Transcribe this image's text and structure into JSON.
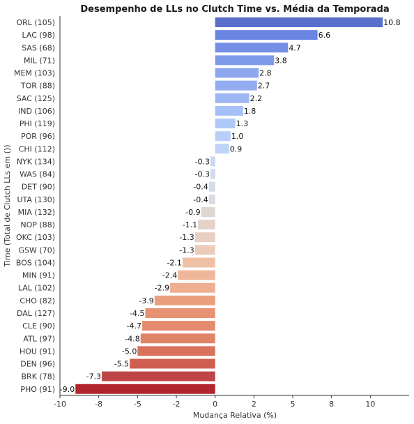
{
  "chart_data": {
    "type": "bar",
    "orientation": "horizontal",
    "title": "Desempenho de LLs no Clutch Time vs. Média da Temporada",
    "xlabel": "Mudança Relativa (%)",
    "ylabel": "Time (Total de Clutch LLs em ())",
    "xlim": [
      -10,
      12.5
    ],
    "xticks": [
      -10,
      -8,
      -5,
      -2,
      0,
      2,
      5,
      8,
      10
    ],
    "xtick_values": [
      -10,
      -7.5,
      -5,
      -2.5,
      0,
      2.5,
      5,
      7.5,
      10
    ],
    "grid": false,
    "categories": [
      "ORL (105)",
      "LAC (98)",
      "SAS (68)",
      "MIL (71)",
      "MEM (103)",
      "TOR (88)",
      "SAC (125)",
      "IND (106)",
      "PHI (119)",
      "POR (96)",
      "CHI (112)",
      "NYK (134)",
      "WAS (84)",
      "DET (90)",
      "UTA (130)",
      "MIA (132)",
      "NOP (88)",
      "OKC (103)",
      "GSW (70)",
      "BOS (104)",
      "MIN (91)",
      "LAL (102)",
      "CHO (82)",
      "DAL (127)",
      "CLE (90)",
      "ATL (97)",
      "HOU (91)",
      "DEN (96)",
      "BRK (78)",
      "PHO (91)"
    ],
    "values": [
      10.8,
      6.6,
      4.7,
      3.8,
      2.8,
      2.7,
      2.2,
      1.8,
      1.3,
      1.0,
      0.9,
      -0.3,
      -0.3,
      -0.4,
      -0.4,
      -0.9,
      -1.1,
      -1.3,
      -1.3,
      -2.1,
      -2.4,
      -2.9,
      -3.9,
      -4.5,
      -4.7,
      -4.8,
      -5.0,
      -5.5,
      -7.3,
      -9.0
    ],
    "value_labels": [
      "10.8",
      "6.6",
      "4.7",
      "3.8",
      "2.8",
      "2.7",
      "2.2",
      "1.8",
      "1.3",
      "1.0",
      "0.9",
      "-0.3",
      "-0.3",
      "-0.4",
      "-0.4",
      "-0.9",
      "-1.1",
      "-1.3",
      "-1.3",
      "-2.1",
      "-2.4",
      "-2.9",
      "-3.9",
      "-4.5",
      "-4.7",
      "-4.8",
      "-5.0",
      "-5.5",
      "-7.3",
      "-9.0"
    ],
    "colors": [
      "#5a6fcc",
      "#6a84e2",
      "#7790e7",
      "#7f9ae9",
      "#8ea8f0",
      "#94adf2",
      "#9db7f5",
      "#a6c0f7",
      "#afc8f8",
      "#b8d0f9",
      "#bfd4f8",
      "#c8d7f2",
      "#cfdaee",
      "#d4dbe8",
      "#d9dbe3",
      "#dfd5d1",
      "#e4d2c9",
      "#e8cfc1",
      "#ecccb9",
      "#efc0a5",
      "#efb79a",
      "#eeae8f",
      "#eb9f7f",
      "#e89274",
      "#e48b6d",
      "#e08467",
      "#d9725c",
      "#cf5f50",
      "#bf4445",
      "#b2252f"
    ]
  }
}
